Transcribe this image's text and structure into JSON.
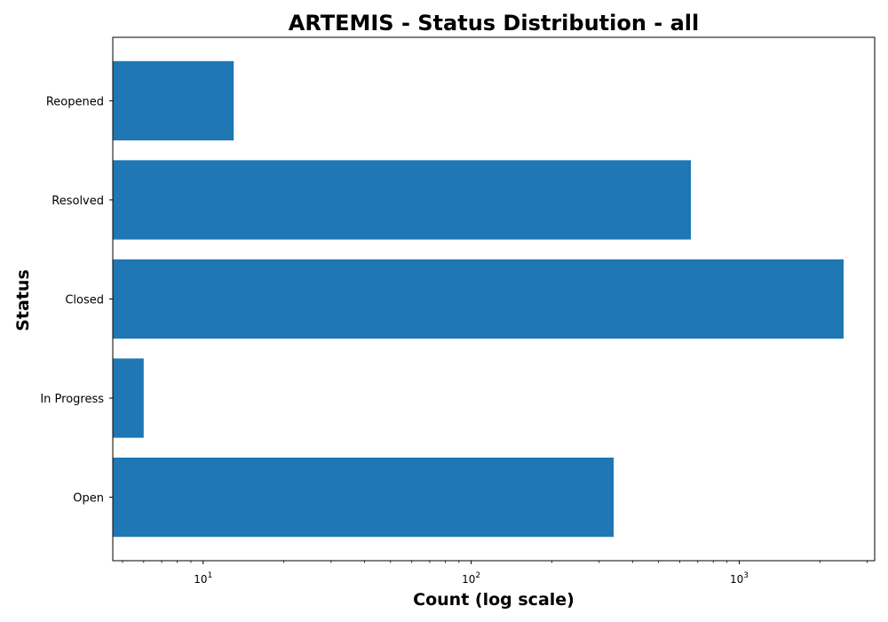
{
  "chart_data": {
    "type": "bar",
    "orientation": "horizontal",
    "title": "ARTEMIS - Status Distribution - all",
    "xlabel": "Count (log scale)",
    "ylabel": "Status",
    "x_scale": "log",
    "xlim": [
      4.6,
      3200
    ],
    "x_ticks": [
      {
        "value": 10,
        "base": "10",
        "exp": "1"
      },
      {
        "value": 100,
        "base": "10",
        "exp": "2"
      },
      {
        "value": 1000,
        "base": "10",
        "exp": "3"
      }
    ],
    "categories": [
      "Open",
      "In Progress",
      "Closed",
      "Resolved",
      "Reopened"
    ],
    "values": [
      340,
      6,
      2450,
      660,
      13
    ],
    "bar_color": "#1f77b4",
    "grid": false,
    "legend": "none"
  }
}
